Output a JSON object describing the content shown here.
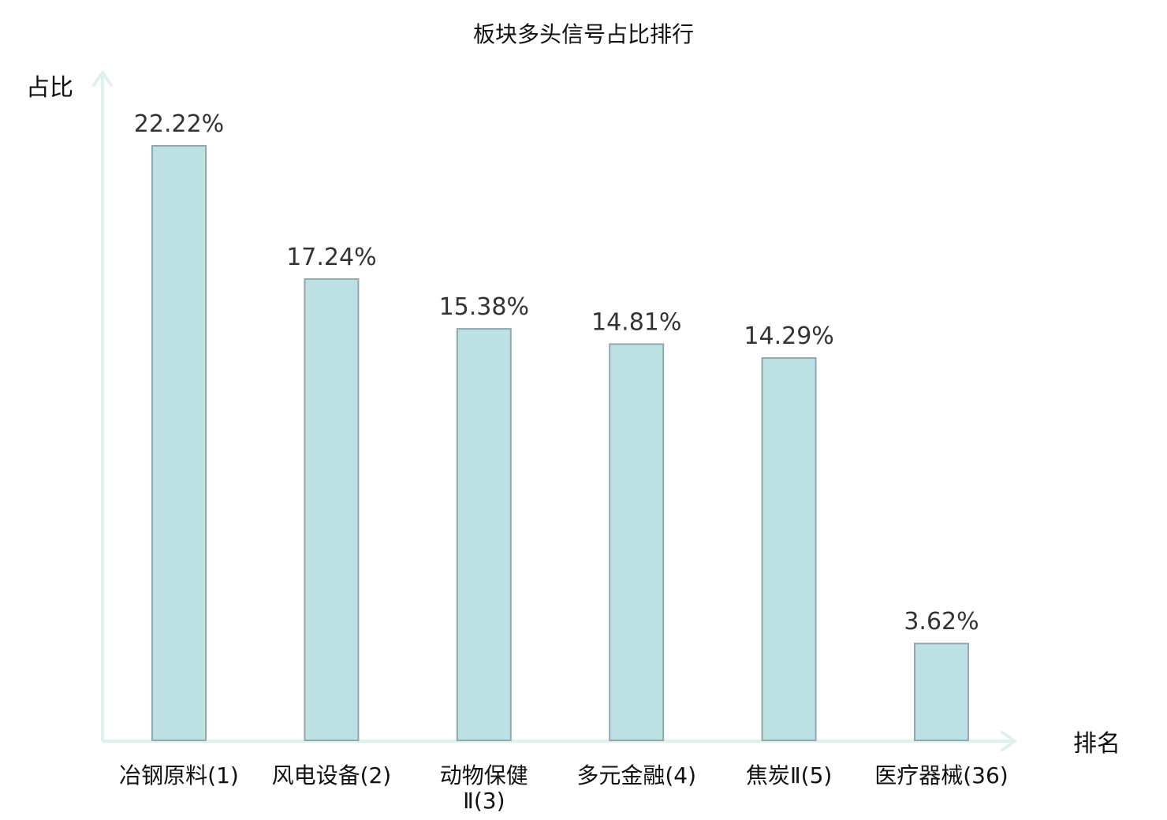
{
  "chart_data": {
    "type": "bar",
    "title": "板块多头信号占比排行",
    "ylabel": "占比",
    "xlabel": "排名",
    "ylim": [
      0,
      25
    ],
    "grid": false,
    "categories": [
      {
        "label": "冶钢原料(1)",
        "lines": [
          "冶钢原料(1)"
        ],
        "highlight": false
      },
      {
        "label": "风电设备(2)",
        "lines": [
          "风电设备(2)"
        ],
        "highlight": false
      },
      {
        "label": "动物保健Ⅱ(3)",
        "lines": [
          "动物保健",
          "Ⅱ(3)"
        ],
        "highlight": false
      },
      {
        "label": "多元金融(4)",
        "lines": [
          "多元金融(4)"
        ],
        "highlight": false
      },
      {
        "label": "焦炭Ⅱ(5)",
        "lines": [
          "焦炭Ⅱ(5)"
        ],
        "highlight": false
      },
      {
        "label": "医疗器械(36)",
        "lines": [
          "医疗器械(36)"
        ],
        "highlight": true
      }
    ],
    "values": [
      22.22,
      17.24,
      15.38,
      14.81,
      14.29,
      3.62
    ],
    "value_labels": [
      "22.22%",
      "17.24%",
      "15.38%",
      "14.81%",
      "14.29%",
      "3.62%"
    ],
    "colors": {
      "bar_fill": "#bde0e3",
      "bar_stroke": "#8fa9ac",
      "axis": "#dff1ee",
      "highlight_label": "#e01414",
      "label": "#111111",
      "value_label": "#333333"
    }
  }
}
